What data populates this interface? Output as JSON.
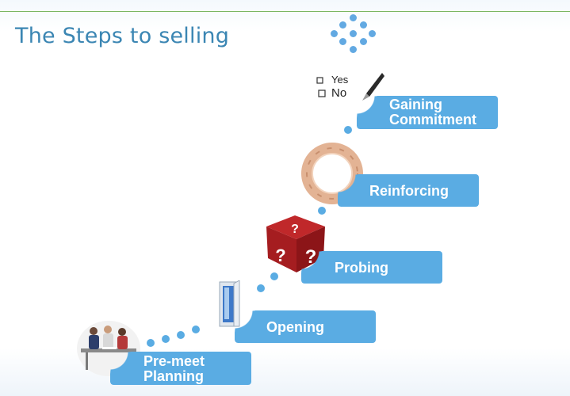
{
  "title": "The Steps to selling",
  "colors": {
    "accent": "#5aace3",
    "title": "#3b86b3",
    "rule": "#7bb662"
  },
  "steps": [
    {
      "line1": "Pre-meet",
      "line2": "Planning",
      "icon": "team-meeting-icon"
    },
    {
      "line1": "Opening",
      "line2": "",
      "icon": "open-door-icon"
    },
    {
      "line1": "Probing",
      "line2": "",
      "icon": "question-dice-icon"
    },
    {
      "line1": "Reinforcing",
      "line2": "",
      "icon": "linked-hands-icon"
    },
    {
      "line1": "Gaining",
      "line2": "Commitment",
      "icon": "checkbox-pen-icon"
    }
  ],
  "checkbox_words": {
    "yes": "Yes",
    "no": "No"
  }
}
